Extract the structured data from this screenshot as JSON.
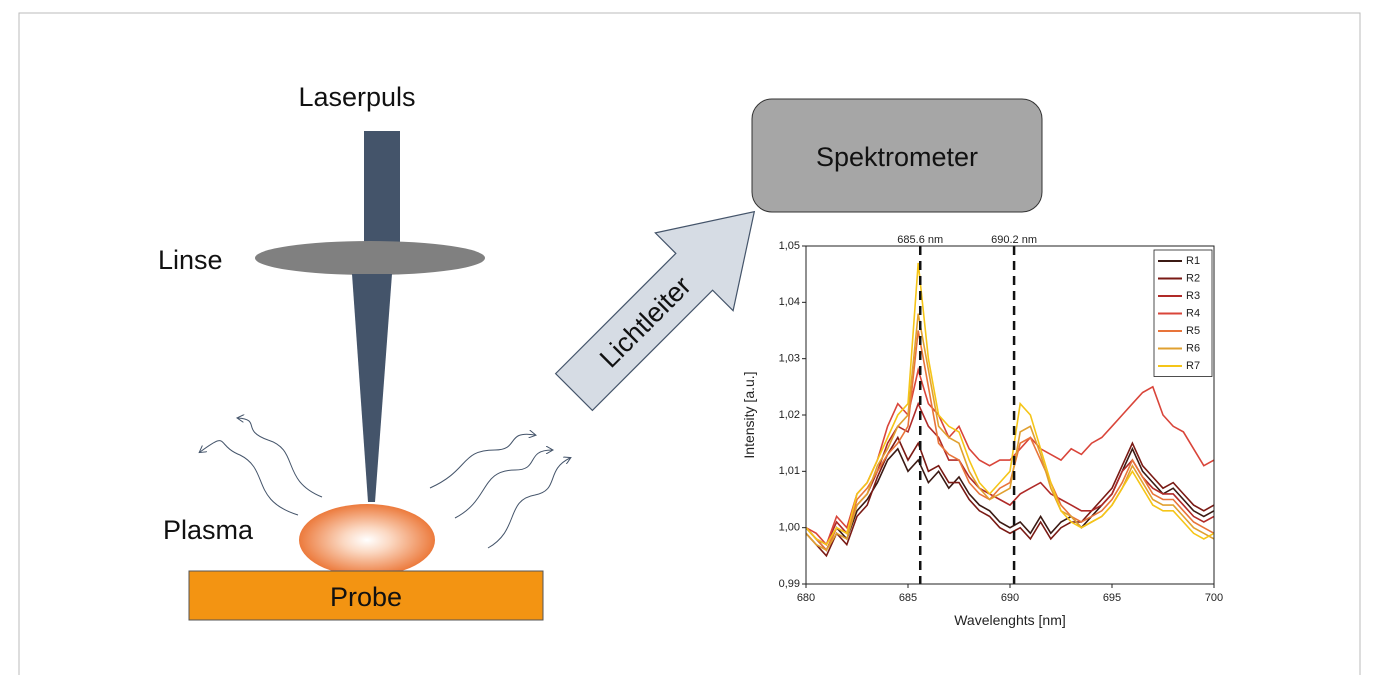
{
  "diagram": {
    "laser": "Laserpuls",
    "lens": "Linse",
    "plasma": "Plasma",
    "sample": "Probe",
    "spectrometer": "Spektrometer",
    "fiber": "Lichtleiter"
  },
  "chart_data": {
    "type": "line",
    "x_label": "Wavelenghts [nm]",
    "y_label": "Intensity [a.u.]",
    "x": [
      680,
      680.5,
      681,
      681.5,
      682,
      682.5,
      683,
      683.5,
      684,
      684.5,
      685,
      685.5,
      686,
      686.5,
      687,
      687.5,
      688,
      688.5,
      689,
      689.5,
      690,
      690.5,
      691,
      691.5,
      692,
      692.5,
      693,
      693.5,
      694,
      694.5,
      695,
      695.5,
      696,
      696.5,
      697,
      697.5,
      698,
      698.5,
      699,
      699.5,
      700
    ],
    "series": [
      {
        "name": "R1",
        "color": "#3b1a14",
        "values": [
          1.0,
          0.998,
          0.996,
          1.0,
          0.998,
          1.003,
          1.005,
          1.008,
          1.012,
          1.014,
          1.01,
          1.012,
          1.008,
          1.01,
          1.007,
          1.009,
          1.006,
          1.004,
          1.003,
          1.001,
          1.0,
          1.001,
          0.999,
          1.002,
          0.999,
          1.001,
          1.002,
          1.0,
          1.002,
          1.004,
          1.006,
          1.01,
          1.014,
          1.01,
          1.008,
          1.006,
          1.007,
          1.005,
          1.003,
          1.002,
          1.003
        ]
      },
      {
        "name": "R2",
        "color": "#7a1a14",
        "values": [
          0.999,
          0.997,
          0.995,
          0.999,
          0.997,
          1.002,
          1.004,
          1.009,
          1.013,
          1.016,
          1.012,
          1.015,
          1.01,
          1.011,
          1.008,
          1.008,
          1.005,
          1.003,
          1.002,
          1.0,
          0.999,
          1.0,
          0.998,
          1.001,
          0.998,
          1.0,
          1.001,
          1.001,
          1.003,
          1.005,
          1.007,
          1.011,
          1.015,
          1.011,
          1.009,
          1.007,
          1.008,
          1.006,
          1.004,
          1.003,
          1.004
        ]
      },
      {
        "name": "R3",
        "color": "#b02a28",
        "values": [
          1.0,
          0.998,
          0.997,
          1.001,
          0.999,
          1.004,
          1.006,
          1.01,
          1.015,
          1.018,
          1.017,
          1.022,
          1.018,
          1.016,
          1.012,
          1.012,
          1.009,
          1.007,
          1.006,
          1.005,
          1.004,
          1.006,
          1.007,
          1.008,
          1.006,
          1.005,
          1.004,
          1.003,
          1.003,
          1.004,
          1.006,
          1.01,
          1.012,
          1.009,
          1.007,
          1.006,
          1.006,
          1.004,
          1.002,
          1.001,
          1.002
        ]
      },
      {
        "name": "R4",
        "color": "#d9453a",
        "values": [
          1.0,
          0.999,
          0.997,
          1.002,
          1.0,
          1.006,
          1.008,
          1.012,
          1.018,
          1.022,
          1.02,
          1.028,
          1.022,
          1.02,
          1.016,
          1.018,
          1.014,
          1.012,
          1.011,
          1.012,
          1.012,
          1.014,
          1.016,
          1.014,
          1.013,
          1.012,
          1.014,
          1.013,
          1.015,
          1.016,
          1.018,
          1.02,
          1.022,
          1.024,
          1.025,
          1.02,
          1.018,
          1.017,
          1.014,
          1.011,
          1.012
        ]
      },
      {
        "name": "R5",
        "color": "#e8743a",
        "values": [
          1.0,
          0.998,
          0.996,
          1.0,
          0.999,
          1.005,
          1.007,
          1.01,
          1.013,
          1.015,
          1.018,
          1.035,
          1.025,
          1.015,
          1.013,
          1.012,
          1.008,
          1.006,
          1.005,
          1.007,
          1.008,
          1.015,
          1.016,
          1.012,
          1.008,
          1.004,
          1.002,
          1.001,
          1.002,
          1.003,
          1.005,
          1.008,
          1.012,
          1.009,
          1.006,
          1.005,
          1.005,
          1.003,
          1.001,
          1.0,
          0.999
        ]
      },
      {
        "name": "R6",
        "color": "#e0a030",
        "values": [
          0.999,
          0.997,
          0.996,
          0.999,
          0.998,
          1.004,
          1.006,
          1.011,
          1.014,
          1.018,
          1.02,
          1.038,
          1.028,
          1.018,
          1.016,
          1.015,
          1.01,
          1.007,
          1.005,
          1.006,
          1.007,
          1.017,
          1.018,
          1.013,
          1.007,
          1.003,
          1.002,
          1.0,
          1.001,
          1.002,
          1.004,
          1.007,
          1.011,
          1.008,
          1.005,
          1.004,
          1.004,
          1.002,
          1.0,
          0.999,
          0.998
        ]
      },
      {
        "name": "R7",
        "color": "#f5c518",
        "values": [
          1.0,
          0.998,
          0.997,
          1.0,
          0.999,
          1.006,
          1.008,
          1.012,
          1.016,
          1.02,
          1.022,
          1.047,
          1.03,
          1.02,
          1.018,
          1.017,
          1.012,
          1.008,
          1.006,
          1.008,
          1.01,
          1.022,
          1.02,
          1.014,
          1.008,
          1.003,
          1.001,
          1.0,
          1.001,
          1.002,
          1.004,
          1.007,
          1.01,
          1.007,
          1.004,
          1.003,
          1.003,
          1.001,
          0.999,
          0.998,
          0.999
        ]
      }
    ],
    "xlim": [
      680,
      700
    ],
    "xticks": [
      680,
      685,
      690,
      695,
      700
    ],
    "ylim": [
      0.99,
      1.05
    ],
    "yticks": [
      {
        "value": 0.99,
        "label": "0,99"
      },
      {
        "value": 1.0,
        "label": "1,00"
      },
      {
        "value": 1.01,
        "label": "1,01"
      },
      {
        "value": 1.02,
        "label": "1,02"
      },
      {
        "value": 1.03,
        "label": "1,03"
      },
      {
        "value": 1.04,
        "label": "1,04"
      },
      {
        "value": 1.05,
        "label": "1,05"
      }
    ],
    "vlines": [
      {
        "value": 685.6,
        "label": "685.6 nm"
      },
      {
        "value": 690.2,
        "label": "690.2 nm"
      }
    ],
    "legend": "upper right",
    "grid": false
  }
}
